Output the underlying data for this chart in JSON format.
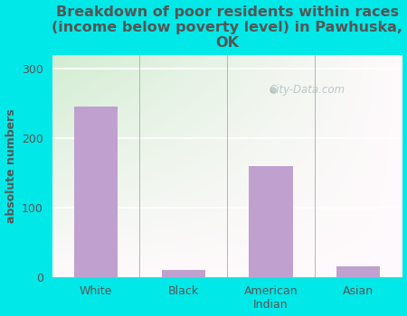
{
  "categories": [
    "White",
    "Black",
    "American\nIndian",
    "Asian"
  ],
  "values": [
    245,
    10,
    160,
    15
  ],
  "bar_color": "#c0a0ce",
  "title": "Breakdown of poor residents within races\n(income below poverty level) in Pawhuska,\nOK",
  "ylabel": "absolute numbers",
  "ylim": [
    0,
    320
  ],
  "yticks": [
    0,
    100,
    200,
    300
  ],
  "background_color": "#00e8e8",
  "title_color": "#555555",
  "axis_label_color": "#555555",
  "tick_color": "#555555",
  "watermark": "City-Data.com",
  "title_fontsize": 11.5,
  "ylabel_fontsize": 9,
  "tick_fontsize": 9,
  "grid_color": "#ccddcc",
  "plot_bg_colors": [
    "#d8efd8",
    "#ffffff"
  ],
  "plot_bg_right_colors": [
    "#d0ecec",
    "#f0fafa"
  ]
}
